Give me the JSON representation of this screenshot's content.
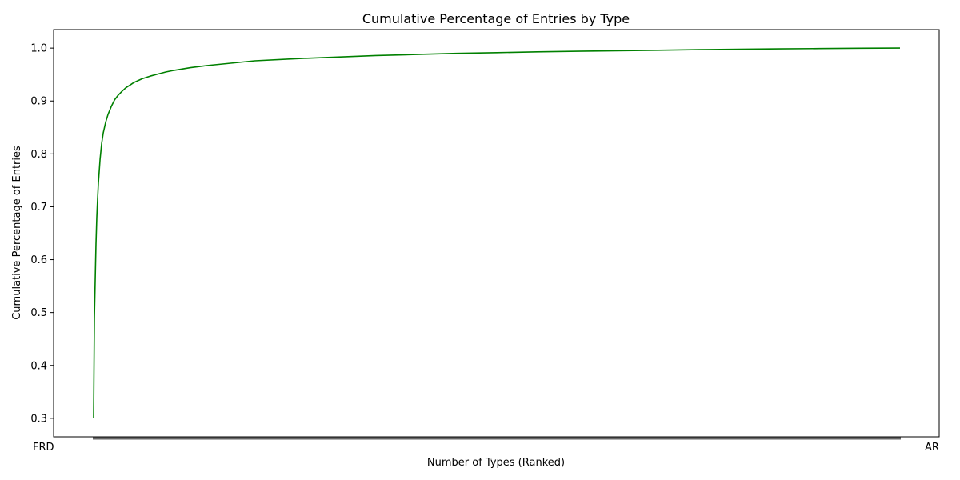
{
  "chart_data": {
    "type": "line",
    "title": "Cumulative Percentage of Entries by Type",
    "xlabel": "Number of Types (Ranked)",
    "ylabel": "Cumulative Percentage of Entries",
    "ylim": [
      0.265,
      1.035
    ],
    "y_ticks": [
      0.3,
      0.4,
      0.5,
      0.6,
      0.7,
      0.8,
      0.9,
      1.0
    ],
    "y_tick_labels": [
      "0.3",
      "0.4",
      "0.5",
      "0.6",
      "0.7",
      "0.8",
      "0.9",
      "1.0"
    ],
    "x_tick_label_first": "FRD",
    "x_tick_label_last": "AR",
    "grid": false,
    "series": [
      {
        "color": "#008000",
        "x": [
          0,
          1,
          2,
          3,
          4,
          5,
          6,
          8,
          10,
          12,
          15,
          18,
          22,
          26,
          30,
          35,
          40,
          45,
          50,
          60,
          70,
          80,
          90,
          100,
          120,
          140,
          160,
          180,
          200,
          250,
          300,
          350,
          400,
          450,
          500,
          550,
          600,
          650,
          700,
          750,
          800,
          850,
          900,
          950,
          1000
        ],
        "y": [
          0.3,
          0.49,
          0.56,
          0.63,
          0.68,
          0.715,
          0.745,
          0.79,
          0.82,
          0.84,
          0.86,
          0.875,
          0.89,
          0.902,
          0.91,
          0.918,
          0.925,
          0.93,
          0.935,
          0.942,
          0.947,
          0.951,
          0.955,
          0.958,
          0.963,
          0.967,
          0.97,
          0.973,
          0.976,
          0.98,
          0.983,
          0.986,
          0.988,
          0.99,
          0.9915,
          0.993,
          0.994,
          0.995,
          0.996,
          0.997,
          0.9978,
          0.9985,
          0.9992,
          0.9997,
          1.0
        ]
      }
    ]
  }
}
